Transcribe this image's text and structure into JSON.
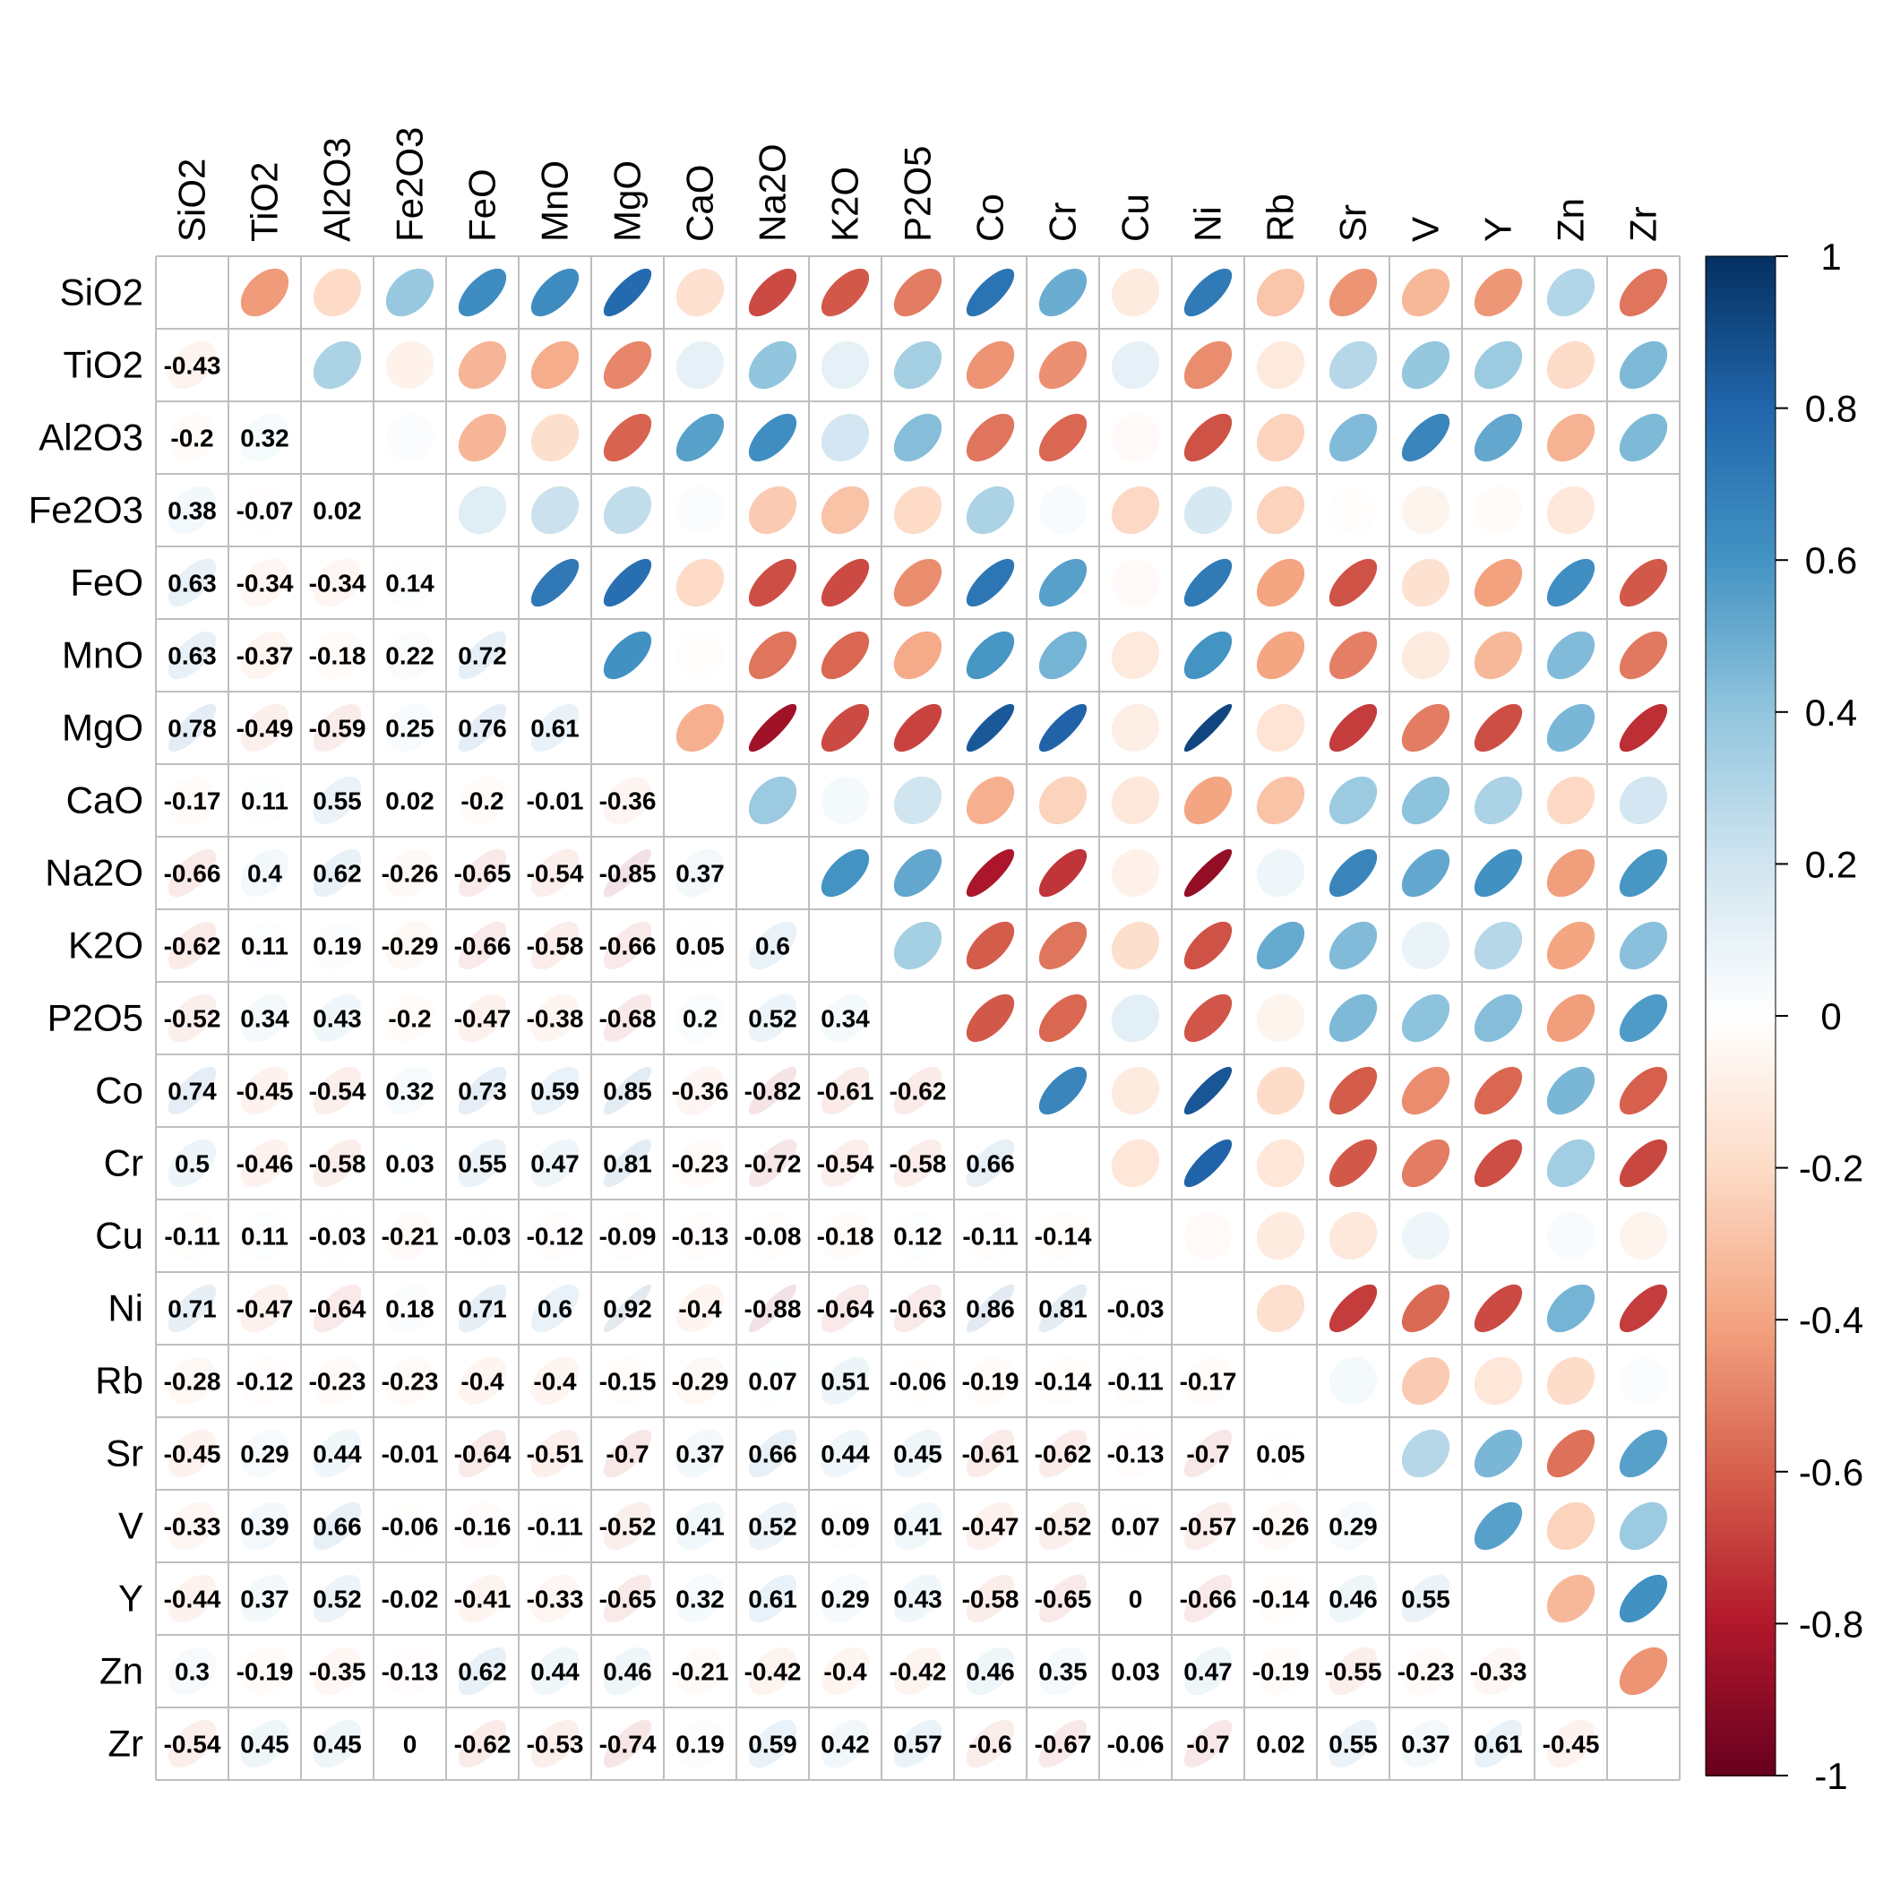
{
  "chart_data": {
    "type": "heatmap",
    "title": "",
    "variables": [
      "SiO2",
      "TiO2",
      "Al2O3",
      "Fe2O3",
      "FeO",
      "MnO",
      "MgO",
      "CaO",
      "Na2O",
      "K2O",
      "P2O5",
      "Co",
      "Cr",
      "Cu",
      "Ni",
      "Rb",
      "Sr",
      "V",
      "Y",
      "Zn",
      "Zr"
    ],
    "lower_triangle_display": "number",
    "upper_triangle_display": "ellipse",
    "lower_triangle_rows": [
      [],
      [
        -0.43
      ],
      [
        -0.2,
        0.32
      ],
      [
        0.38,
        -0.07,
        0.02
      ],
      [
        0.63,
        -0.34,
        -0.34,
        0.14
      ],
      [
        0.63,
        -0.37,
        -0.18,
        0.22,
        0.72
      ],
      [
        0.78,
        -0.49,
        -0.59,
        0.25,
        0.76,
        0.61
      ],
      [
        -0.17,
        0.11,
        0.55,
        0.02,
        -0.2,
        -0.01,
        -0.36
      ],
      [
        -0.66,
        0.4,
        0.62,
        -0.26,
        -0.65,
        -0.54,
        -0.85,
        0.37
      ],
      [
        -0.62,
        0.11,
        0.19,
        -0.29,
        -0.66,
        -0.58,
        -0.66,
        0.05,
        0.6
      ],
      [
        -0.52,
        0.34,
        0.43,
        -0.2,
        -0.47,
        -0.38,
        -0.68,
        0.2,
        0.52,
        0.34
      ],
      [
        0.74,
        -0.45,
        -0.54,
        0.32,
        0.73,
        0.59,
        0.85,
        -0.36,
        -0.82,
        -0.61,
        -0.62
      ],
      [
        0.5,
        -0.46,
        -0.58,
        0.03,
        0.55,
        0.47,
        0.81,
        -0.23,
        -0.72,
        -0.54,
        -0.58,
        0.66
      ],
      [
        -0.11,
        0.11,
        -0.03,
        -0.21,
        -0.03,
        -0.12,
        -0.09,
        -0.13,
        -0.08,
        -0.18,
        0.12,
        -0.11,
        -0.14
      ],
      [
        0.71,
        -0.47,
        -0.64,
        0.18,
        0.71,
        0.6,
        0.92,
        -0.4,
        -0.88,
        -0.64,
        -0.63,
        0.86,
        0.81,
        -0.03
      ],
      [
        -0.28,
        -0.12,
        -0.23,
        -0.23,
        -0.4,
        -0.4,
        -0.15,
        -0.29,
        0.07,
        0.51,
        -0.06,
        -0.19,
        -0.14,
        -0.11,
        -0.17
      ],
      [
        -0.45,
        0.29,
        0.44,
        -0.01,
        -0.64,
        -0.51,
        -0.7,
        0.37,
        0.66,
        0.44,
        0.45,
        -0.61,
        -0.62,
        -0.13,
        -0.7,
        0.05
      ],
      [
        -0.33,
        0.39,
        0.66,
        -0.06,
        -0.16,
        -0.11,
        -0.52,
        0.41,
        0.52,
        0.09,
        0.41,
        -0.47,
        -0.52,
        0.07,
        -0.57,
        -0.26,
        0.29
      ],
      [
        -0.44,
        0.37,
        0.52,
        -0.02,
        -0.41,
        -0.33,
        -0.65,
        0.32,
        0.61,
        0.29,
        0.43,
        -0.58,
        -0.65,
        0,
        -0.66,
        -0.14,
        0.46,
        0.55
      ],
      [
        0.3,
        -0.19,
        -0.35,
        -0.13,
        0.62,
        0.44,
        0.46,
        -0.21,
        -0.42,
        -0.4,
        -0.42,
        0.46,
        0.35,
        0.03,
        0.47,
        -0.19,
        -0.55,
        -0.23,
        -0.33
      ],
      [
        -0.54,
        0.45,
        0.45,
        0,
        -0.62,
        -0.53,
        -0.74,
        0.19,
        0.59,
        0.42,
        0.57,
        -0.6,
        -0.67,
        -0.06,
        -0.7,
        0.02,
        0.55,
        0.37,
        0.61,
        -0.45
      ]
    ],
    "colorbar": {
      "range": [
        -1,
        1
      ],
      "tick_values": [
        1,
        0.8,
        0.6,
        0.4,
        0.2,
        0,
        -0.2,
        -0.4,
        -0.6,
        -0.8,
        -1
      ],
      "tick_labels": [
        "1",
        "0.8",
        "0.6",
        "0.4",
        "0.2",
        "0",
        "-0.2",
        "-0.4",
        "-0.6",
        "-0.8",
        "-1"
      ],
      "colors": [
        "#67001F",
        "#B2182B",
        "#D6604D",
        "#F4A582",
        "#FDDBC7",
        "#FFFFFF",
        "#D1E5F0",
        "#92C5DE",
        "#4393C3",
        "#2166AC",
        "#053061"
      ]
    },
    "grid": true,
    "legend_placement": "right"
  }
}
